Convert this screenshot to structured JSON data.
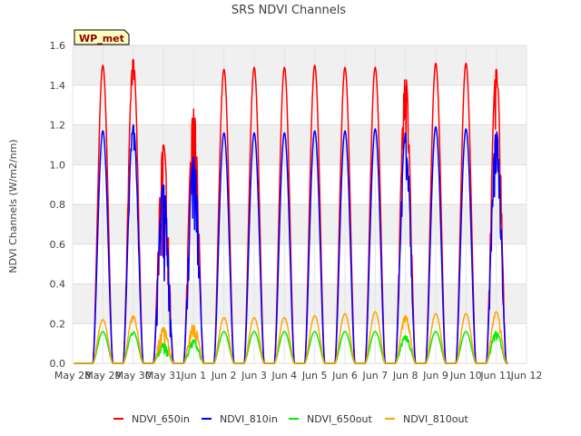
{
  "chart_data": {
    "type": "line",
    "title": "SRS NDVI Channels",
    "xlabel": "",
    "ylabel": "NDVI Channels (W/m2/nm)",
    "ylim": [
      0,
      1.6
    ],
    "y_ticks": [
      0.0,
      0.2,
      0.4,
      0.6,
      0.8,
      1.0,
      1.2,
      1.4,
      1.6
    ],
    "y_tick_labels": [
      "0.0",
      "0.2",
      "0.4",
      "0.6",
      "0.8",
      "1.0",
      "1.2",
      "1.4",
      "1.6"
    ],
    "xlim_days": [
      0,
      15
    ],
    "x_tick_labels": [
      "May 28",
      "May 29",
      "May 30",
      "May 31",
      "Jun 1",
      "Jun 2",
      "Jun 3",
      "Jun 4",
      "Jun 5",
      "Jun 6",
      "Jun 7",
      "Jun 8",
      "Jun 9",
      "Jun 10",
      "Jun 11",
      "Jun 12"
    ],
    "grid": true,
    "legend_position": "bottom",
    "watermark": "WP_met",
    "series": [
      {
        "name": "NDVI_650in",
        "color": "#ff0000",
        "daily_peaks": [
          1.5,
          1.53,
          1.1,
          1.28,
          1.48,
          1.49,
          1.49,
          1.5,
          1.49,
          1.49,
          1.45,
          1.51,
          1.51,
          1.48
        ]
      },
      {
        "name": "NDVI_810in",
        "color": "#0000ff",
        "daily_peaks": [
          1.17,
          1.2,
          0.9,
          1.04,
          1.16,
          1.16,
          1.16,
          1.17,
          1.17,
          1.18,
          1.16,
          1.19,
          1.18,
          1.17
        ]
      },
      {
        "name": "NDVI_650out",
        "color": "#00ee00",
        "daily_peaks": [
          0.16,
          0.16,
          0.1,
          0.12,
          0.16,
          0.16,
          0.16,
          0.16,
          0.16,
          0.16,
          0.14,
          0.16,
          0.16,
          0.16
        ]
      },
      {
        "name": "NDVI_810out",
        "color": "#ffa500",
        "daily_peaks": [
          0.22,
          0.24,
          0.18,
          0.2,
          0.23,
          0.23,
          0.23,
          0.24,
          0.25,
          0.26,
          0.24,
          0.25,
          0.25,
          0.26
        ]
      }
    ],
    "peak_day_offsets": [
      1,
      2,
      3,
      4,
      5,
      6,
      7,
      8,
      9,
      10,
      11,
      12,
      13,
      14
    ]
  }
}
